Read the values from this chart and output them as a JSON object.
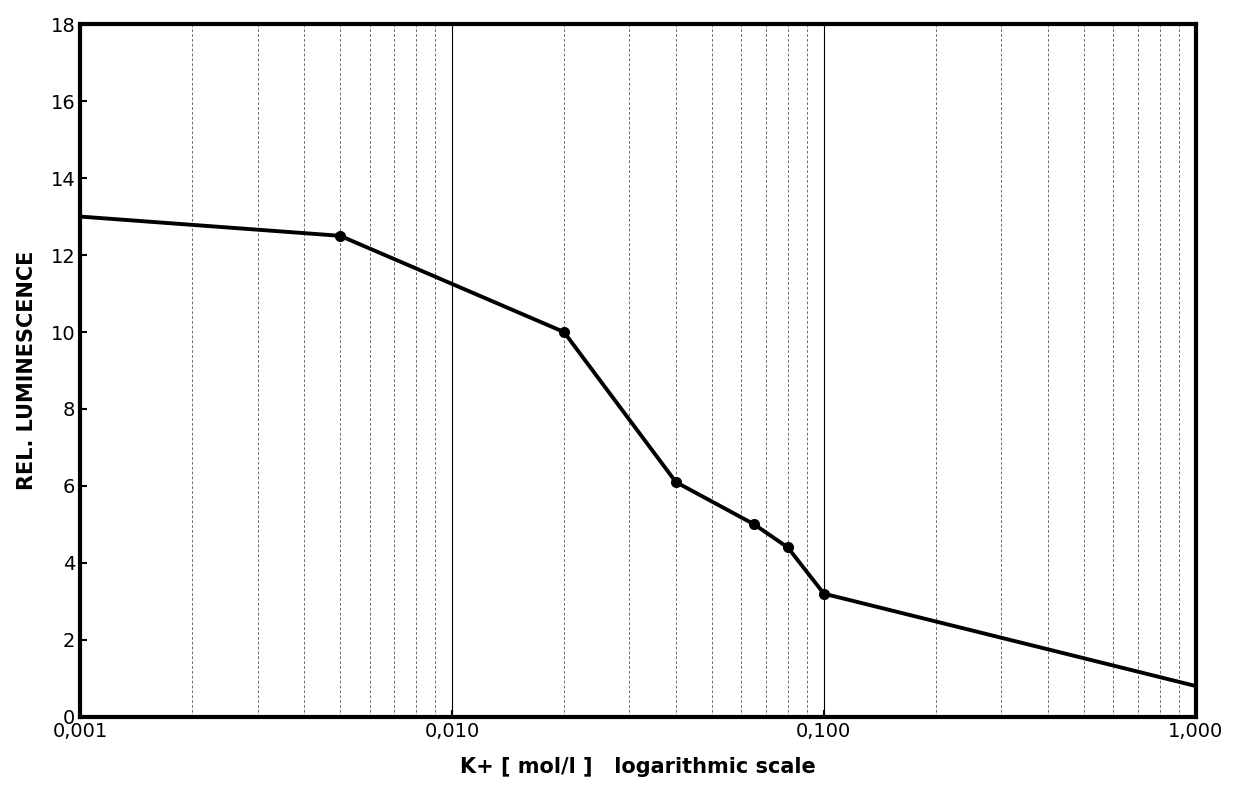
{
  "x_data": [
    0.001,
    0.005,
    0.02,
    0.04,
    0.065,
    0.08,
    0.1,
    1.0
  ],
  "y_data": [
    13.0,
    12.5,
    10.0,
    6.1,
    5.0,
    4.4,
    3.2,
    0.8
  ],
  "marker_x": [
    0.005,
    0.02,
    0.04,
    0.065,
    0.08,
    0.1
  ],
  "marker_y": [
    12.5,
    10.0,
    6.1,
    5.0,
    4.4,
    3.2
  ],
  "xlim": [
    0.001,
    1.0
  ],
  "ylim": [
    0,
    18
  ],
  "yticks": [
    0,
    2,
    4,
    6,
    8,
    10,
    12,
    14,
    16,
    18
  ],
  "xtick_labels": [
    "0,001",
    "0,010",
    "0,100",
    "1,000"
  ],
  "xtick_positions": [
    0.001,
    0.01,
    0.1,
    1.0
  ],
  "xlabel": "K+ [ mol/l ]   logarithmic scale",
  "ylabel": "REL. LUMINESCENCE",
  "line_color": "#000000",
  "marker_color": "#000000",
  "background_color": "#ffffff",
  "major_grid_color": "#000000",
  "minor_grid_color": "#555555",
  "line_width": 2.8,
  "marker_size": 7,
  "label_fontsize": 15,
  "tick_fontsize": 14,
  "spine_linewidth": 3.0
}
